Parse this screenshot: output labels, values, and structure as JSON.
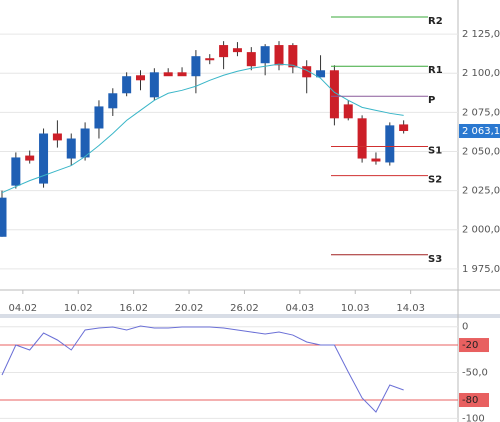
{
  "chart_data": [
    {
      "type": "candlestick",
      "categories": [
        null,
        "04.02",
        null,
        null,
        null,
        "10.02",
        null,
        null,
        null,
        "16.02",
        null,
        null,
        null,
        "20.02",
        null,
        null,
        null,
        "26.02",
        null,
        null,
        null,
        "04.03",
        null,
        null,
        null,
        "10.03",
        null,
        null,
        null,
        "14.03"
      ],
      "open": [
        1995.5,
        2028.2,
        2047.4,
        2029.5,
        2061.5,
        2045.5,
        2046.2,
        2064.7,
        2077.6,
        2087.2,
        2098.7,
        2084.6,
        2100.6,
        2100.6,
        2098.1,
        2109.6,
        2118.0,
        2116.0,
        2113.5,
        2106.4,
        2118.0,
        2118.0,
        2104.5,
        2097.4,
        2101.9,
        2080.1,
        2071.2,
        2045.5,
        2043.0,
        2067.3
      ],
      "high": [
        2025.0,
        2049.4,
        2050.6,
        2064.7,
        2069.9,
        2061.5,
        2068.6,
        2082.7,
        2090.4,
        2100.6,
        2101.9,
        2103.2,
        2103.2,
        2103.8,
        2114.8,
        2112.2,
        2120.5,
        2119.9,
        2116.7,
        2118.6,
        2120.5,
        2119.2,
        2108.3,
        2111.5,
        2105.1,
        2082.7,
        2073.1,
        2049.4,
        2068.6,
        2069.9
      ],
      "low": [
        1995.5,
        2026.3,
        2042.3,
        2026.9,
        2052.5,
        2041.0,
        2044.2,
        2058.3,
        2072.7,
        2085.3,
        2089.1,
        2082.7,
        2099.4,
        2099.4,
        2087.2,
        2105.8,
        2102.6,
        2110.9,
        2101.9,
        2098.7,
        2101.9,
        2100.0,
        2087.2,
        2097.4,
        2066.7,
        2069.9,
        2042.9,
        2041.6,
        2041.0,
        2061.5
      ],
      "close": [
        2020.5,
        2046.2,
        2044.2,
        2061.5,
        2057.1,
        2058.3,
        2064.7,
        2078.8,
        2087.2,
        2098.1,
        2095.5,
        2100.6,
        2098.1,
        2098.1,
        2110.9,
        2108.3,
        2110.3,
        2113.5,
        2104.5,
        2117.3,
        2105.1,
        2103.8,
        2097.4,
        2101.9,
        2071.2,
        2071.2,
        2045.5,
        2043.6,
        2066.7,
        2063.1
      ],
      "up_color": "#1f5fb4",
      "down_color": "#cc1f28",
      "overlay": {
        "color": "#3ab6c8",
        "values": [
          2023.7,
          2027.6,
          2031.4,
          2034.6,
          2037.8,
          2041.0,
          2046.8,
          2053.8,
          2061.5,
          2069.9,
          2076.3,
          2082.7,
          2087.2,
          2089.1,
          2091.7,
          2095.5,
          2098.7,
          2101.3,
          2103.2,
          2104.5,
          2105.8,
          2105.1,
          2101.9,
          2096.8,
          2087.8,
          2082.7,
          2078.2,
          2076.3,
          2074.4,
          2073.1
        ]
      },
      "levels": [
        {
          "label": "R2",
          "value": 2135.9,
          "color": "#3aa83a"
        },
        {
          "label": "R1",
          "value": 2104.5,
          "color": "#3aa83a"
        },
        {
          "label": "P",
          "value": 2085.3,
          "color": "#8a5a9a"
        },
        {
          "label": "S1",
          "value": 2053.2,
          "color": "#d03030"
        },
        {
          "label": "S2",
          "value": 2034.6,
          "color": "#d03030"
        },
        {
          "label": "S3",
          "value": 1984.0,
          "color": "#a02020"
        }
      ],
      "last_value": {
        "value": 2063.1,
        "label": "2 063,1"
      },
      "ylim": [
        1961.5,
        2146.8
      ],
      "yticks": [
        {
          "value": 1975,
          "label": "1 975,0"
        },
        {
          "value": 2000,
          "label": "2 000,0"
        },
        {
          "value": 2025,
          "label": "2 025,0"
        },
        {
          "value": 2050,
          "label": "2 050,0"
        },
        {
          "value": 2075,
          "label": "2 075,0"
        },
        {
          "value": 2100,
          "label": "2 100,0"
        },
        {
          "value": 2125,
          "label": "2 125,0"
        }
      ],
      "grid": true
    },
    {
      "type": "line",
      "values": [
        -52.7,
        -20.0,
        -25.4,
        -6.9,
        -14.5,
        -25.4,
        -3.6,
        -1.4,
        -0.3,
        -3.6,
        0.8,
        -1.4,
        -1.4,
        -0.3,
        -0.3,
        -0.3,
        -1.4,
        -3.6,
        -5.8,
        -8.0,
        -5.8,
        -9.1,
        -16.7,
        -20.0,
        -20.0,
        -49.4,
        -77.8,
        -93.1,
        -63.6,
        -69.1
      ],
      "color": "#6a6fd6",
      "levels": [
        -20,
        -80
      ],
      "level_color": "#e86060",
      "ylim": [
        -104,
        9.5
      ],
      "yticks": [
        0,
        -20,
        {
          "value": -50,
          "label": "-50,0"
        },
        -80,
        -100
      ],
      "grid": true
    }
  ]
}
